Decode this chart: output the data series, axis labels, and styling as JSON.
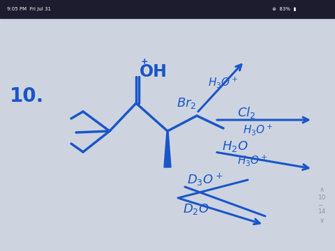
{
  "bg_color": "#cdd4e0",
  "toolbar_color": "#1c1c2e",
  "ink_color": "#1a55c8",
  "figsize": [
    4.8,
    3.6
  ],
  "dpi": 100
}
